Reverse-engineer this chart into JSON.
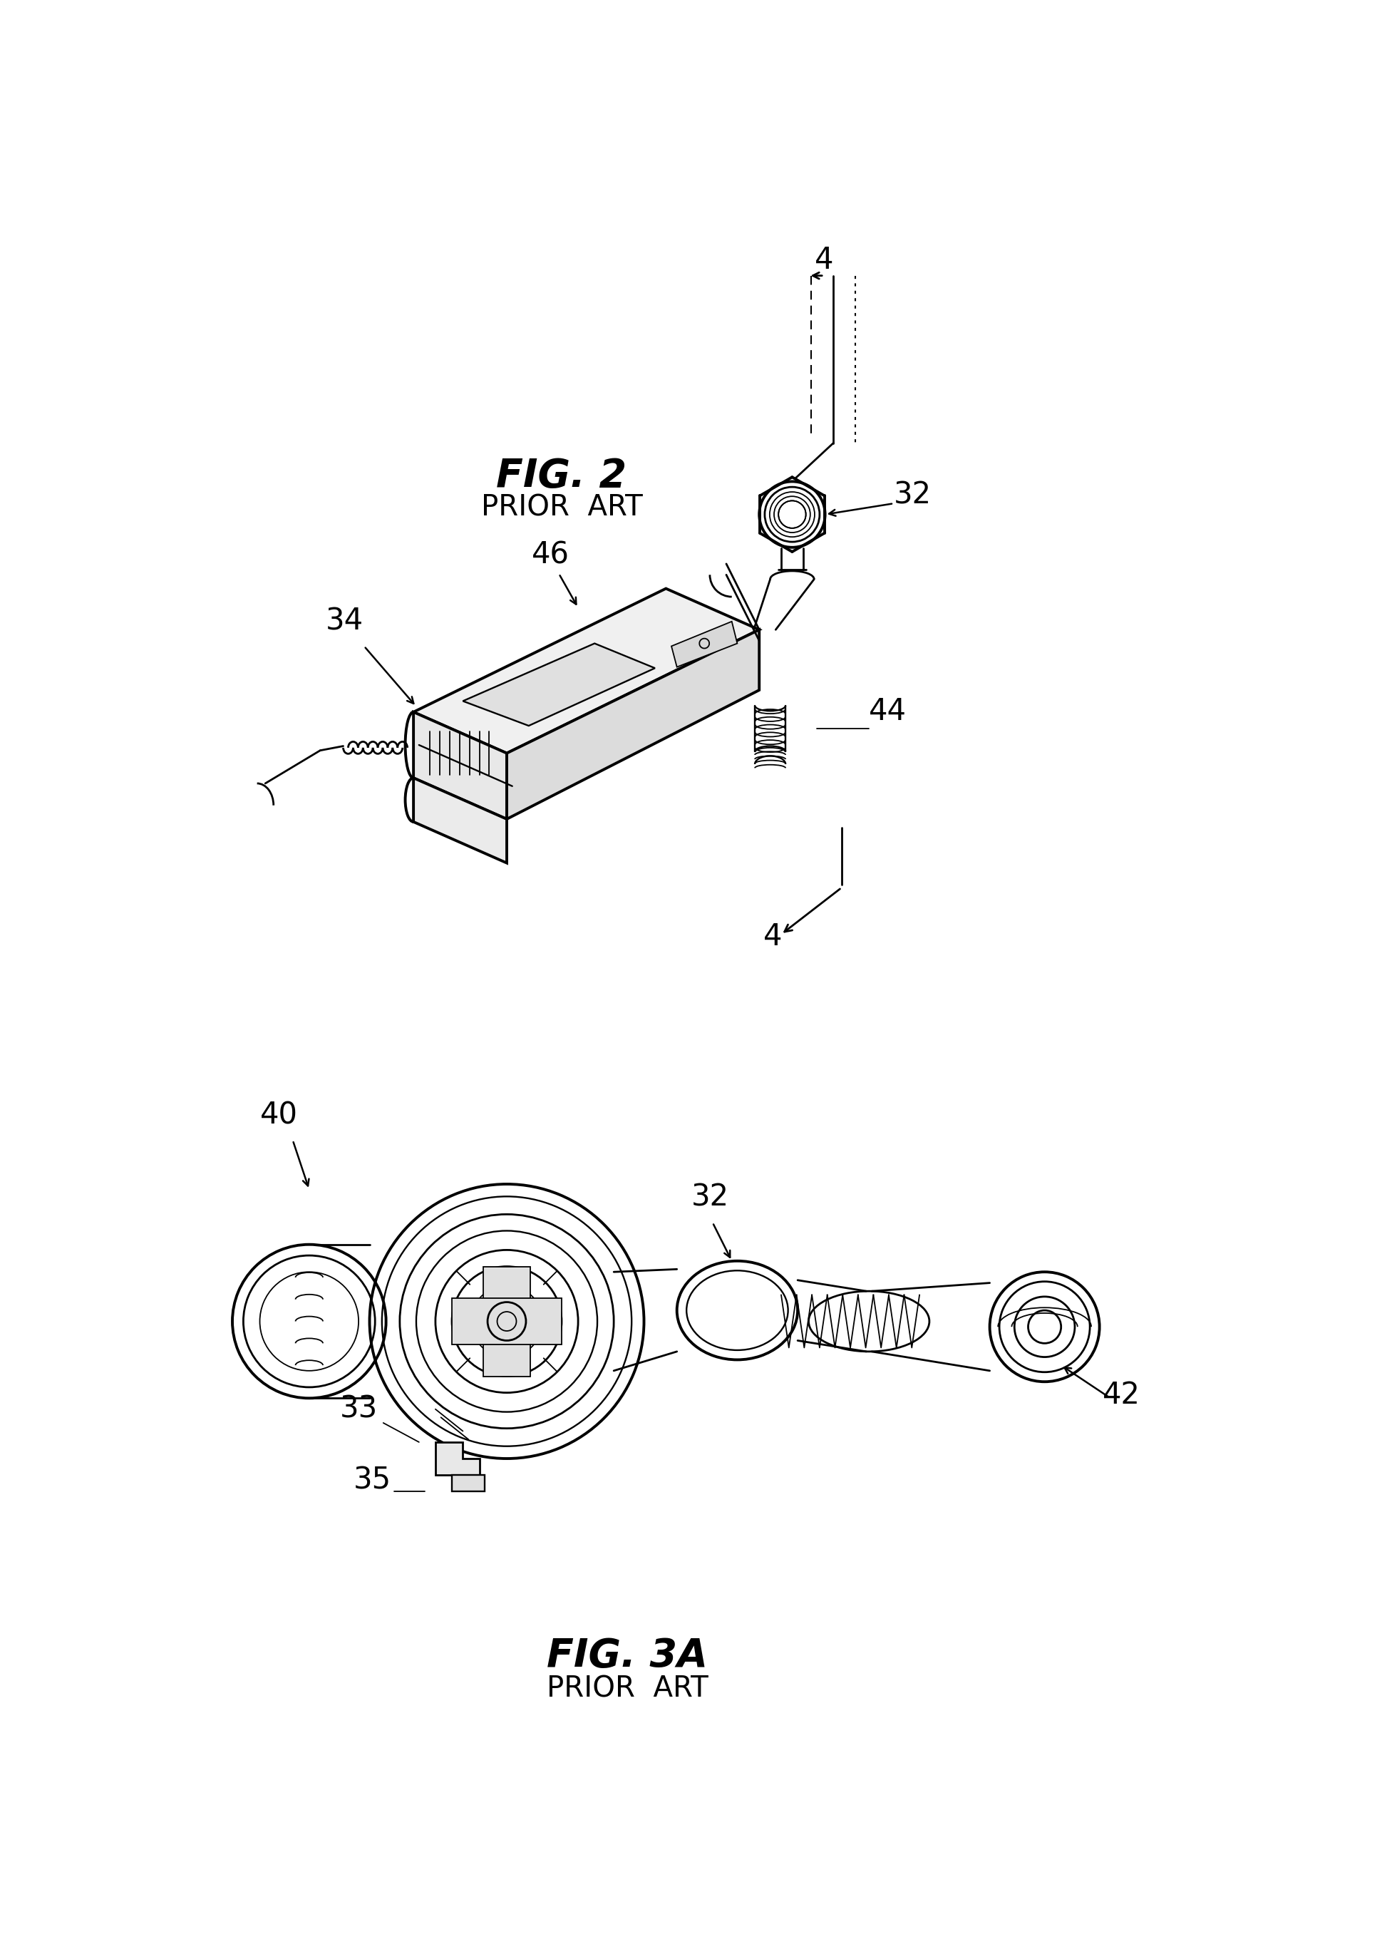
{
  "fig_width": 19.53,
  "fig_height": 27.41,
  "bg_color": "#ffffff",
  "line_color": "#000000",
  "fig2_label": "FIG. 2",
  "fig2_sublabel": "PRIOR  ART",
  "fig3a_label": "FIG. 3A",
  "fig3a_sublabel": "PRIOR  ART",
  "labels": {
    "4_top": "4",
    "32_top": "32",
    "46": "46",
    "34": "34",
    "44": "44",
    "40": "40",
    "32_bottom": "32",
    "33": "33",
    "35": "35",
    "42": "42",
    "4_bottom": "4"
  }
}
